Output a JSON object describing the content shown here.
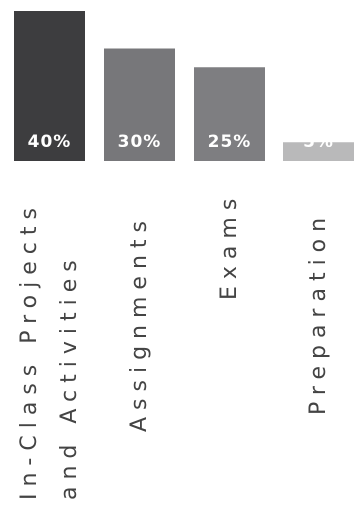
{
  "chart_data": {
    "type": "bar",
    "categories": [
      [
        "In-Class Projects",
        "and Activities"
      ],
      [
        "Assignments"
      ],
      [
        "Exams"
      ],
      [
        "Preparation"
      ]
    ],
    "values": [
      40,
      30,
      25,
      5
    ],
    "value_labels": [
      "40%",
      "30%",
      "25%",
      "5%"
    ],
    "colors": [
      "#3d3d3f",
      "#77777a",
      "#7e7e81",
      "#b9b9ba"
    ],
    "title": "",
    "xlabel": "",
    "ylabel": "",
    "grid": false,
    "legend": "none"
  }
}
